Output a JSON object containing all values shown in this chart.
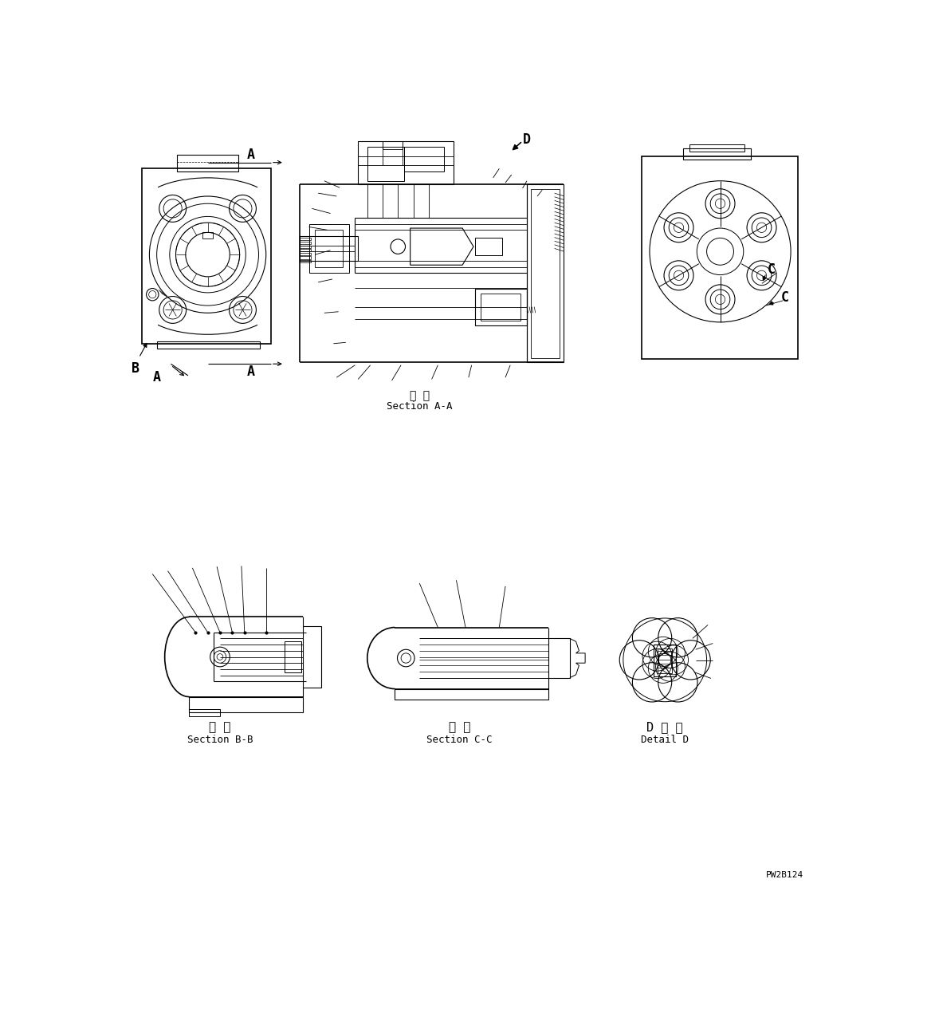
{
  "bg_color": "#ffffff",
  "line_color": "#000000",
  "fig_width": 11.68,
  "fig_height": 12.8,
  "dpi": 100,
  "section_aa_label_jp": "断 面",
  "section_aa_label_en": "Section A-A",
  "section_bb_label_jp": "断 面",
  "section_bb_label_en": "Section B-B",
  "section_cc_label_jp": "断 面",
  "section_cc_label_en": "Section C-C",
  "detail_d_label_jp": "D 詳 細",
  "detail_d_label_en": "Detail D",
  "drawing_id": "PW2B124",
  "label_A": "A",
  "label_B": "B",
  "label_C": "C",
  "label_D": "D"
}
